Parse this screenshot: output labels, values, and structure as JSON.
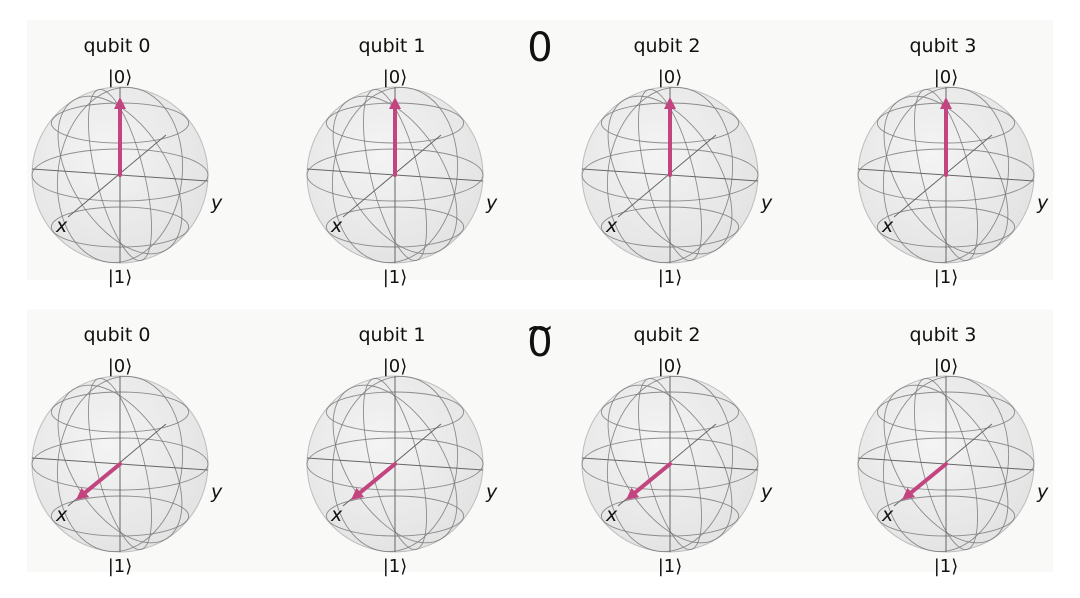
{
  "rows": [
    {
      "title": "0",
      "tilde": false,
      "qubits": [
        {
          "label": "qubit 0",
          "state": "|0⟩",
          "vector": "up"
        },
        {
          "label": "qubit 1",
          "state": "|0⟩",
          "vector": "up"
        },
        {
          "label": "qubit 2",
          "state": "|0⟩",
          "vector": "up"
        },
        {
          "label": "qubit 3",
          "state": "|0⟩",
          "vector": "up"
        }
      ]
    },
    {
      "title": "0",
      "tilde": true,
      "qubits": [
        {
          "label": "qubit 0",
          "state": "|+⟩",
          "vector": "x"
        },
        {
          "label": "qubit 1",
          "state": "|+⟩",
          "vector": "x"
        },
        {
          "label": "qubit 2",
          "state": "|+⟩",
          "vector": "x"
        },
        {
          "label": "qubit 3",
          "state": "|+⟩",
          "vector": "x"
        }
      ]
    }
  ],
  "labels": {
    "top_ket": "|0⟩",
    "bottom_ket": "|1⟩",
    "x_axis": "x",
    "y_axis": "y",
    "tilde": "~"
  },
  "colors": {
    "vector": "#c3457f",
    "sphere_fill": "#e3e3e3",
    "wire": "#7a7a7a",
    "panel": "#f9f9f7"
  }
}
